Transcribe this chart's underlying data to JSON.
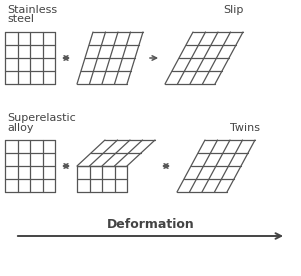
{
  "bg_color": "#ffffff",
  "text_color": "#444444",
  "grid_color": "#555555",
  "grid_lw": 0.9,
  "title_row1a": "Stainless",
  "title_row1b": "steel",
  "title_row2a": "Superelastic",
  "title_row2b": "alloy",
  "label_slip": "Slip",
  "label_twins": "Twins",
  "label_deformation": "Deformation",
  "fig_width": 3.01,
  "fig_height": 2.76,
  "dpi": 100
}
